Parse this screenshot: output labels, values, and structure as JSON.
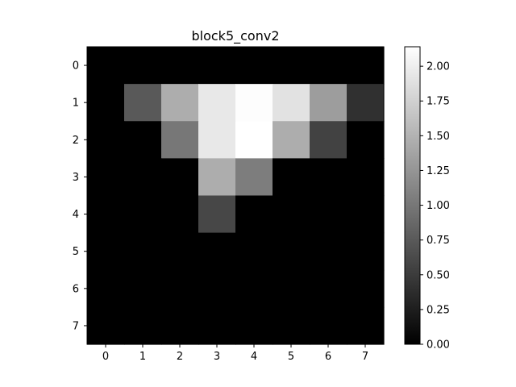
{
  "chart_data": {
    "type": "heatmap",
    "title": "block5_conv2",
    "colormap": "gray",
    "rows": 8,
    "cols": 8,
    "x_ticks": [
      "0",
      "1",
      "2",
      "3",
      "4",
      "5",
      "6",
      "7"
    ],
    "y_ticks": [
      "0",
      "1",
      "2",
      "3",
      "4",
      "5",
      "6",
      "7"
    ],
    "values": [
      [
        0,
        0,
        0,
        0,
        0,
        0,
        0,
        0
      ],
      [
        0,
        0.75,
        1.45,
        1.95,
        2.12,
        1.9,
        1.32,
        0.4
      ],
      [
        0,
        0,
        1.0,
        1.95,
        2.14,
        1.45,
        0.55,
        0
      ],
      [
        0,
        0,
        0,
        1.45,
        1.05,
        0,
        0,
        0
      ],
      [
        0,
        0,
        0,
        0.6,
        0,
        0,
        0,
        0
      ],
      [
        0,
        0,
        0,
        0,
        0,
        0,
        0,
        0
      ],
      [
        0,
        0,
        0,
        0,
        0,
        0,
        0,
        0
      ],
      [
        0,
        0,
        0,
        0,
        0,
        0,
        0,
        0
      ]
    ],
    "colorbar": {
      "min": 0,
      "max": 2.14,
      "ticks": [
        0,
        0.25,
        0.5,
        0.75,
        1.0,
        1.25,
        1.5,
        1.75,
        2.0
      ],
      "tick_labels": [
        "0.00",
        "0.25",
        "0.50",
        "0.75",
        "1.00",
        "1.25",
        "1.50",
        "1.75",
        "2.00"
      ]
    }
  }
}
